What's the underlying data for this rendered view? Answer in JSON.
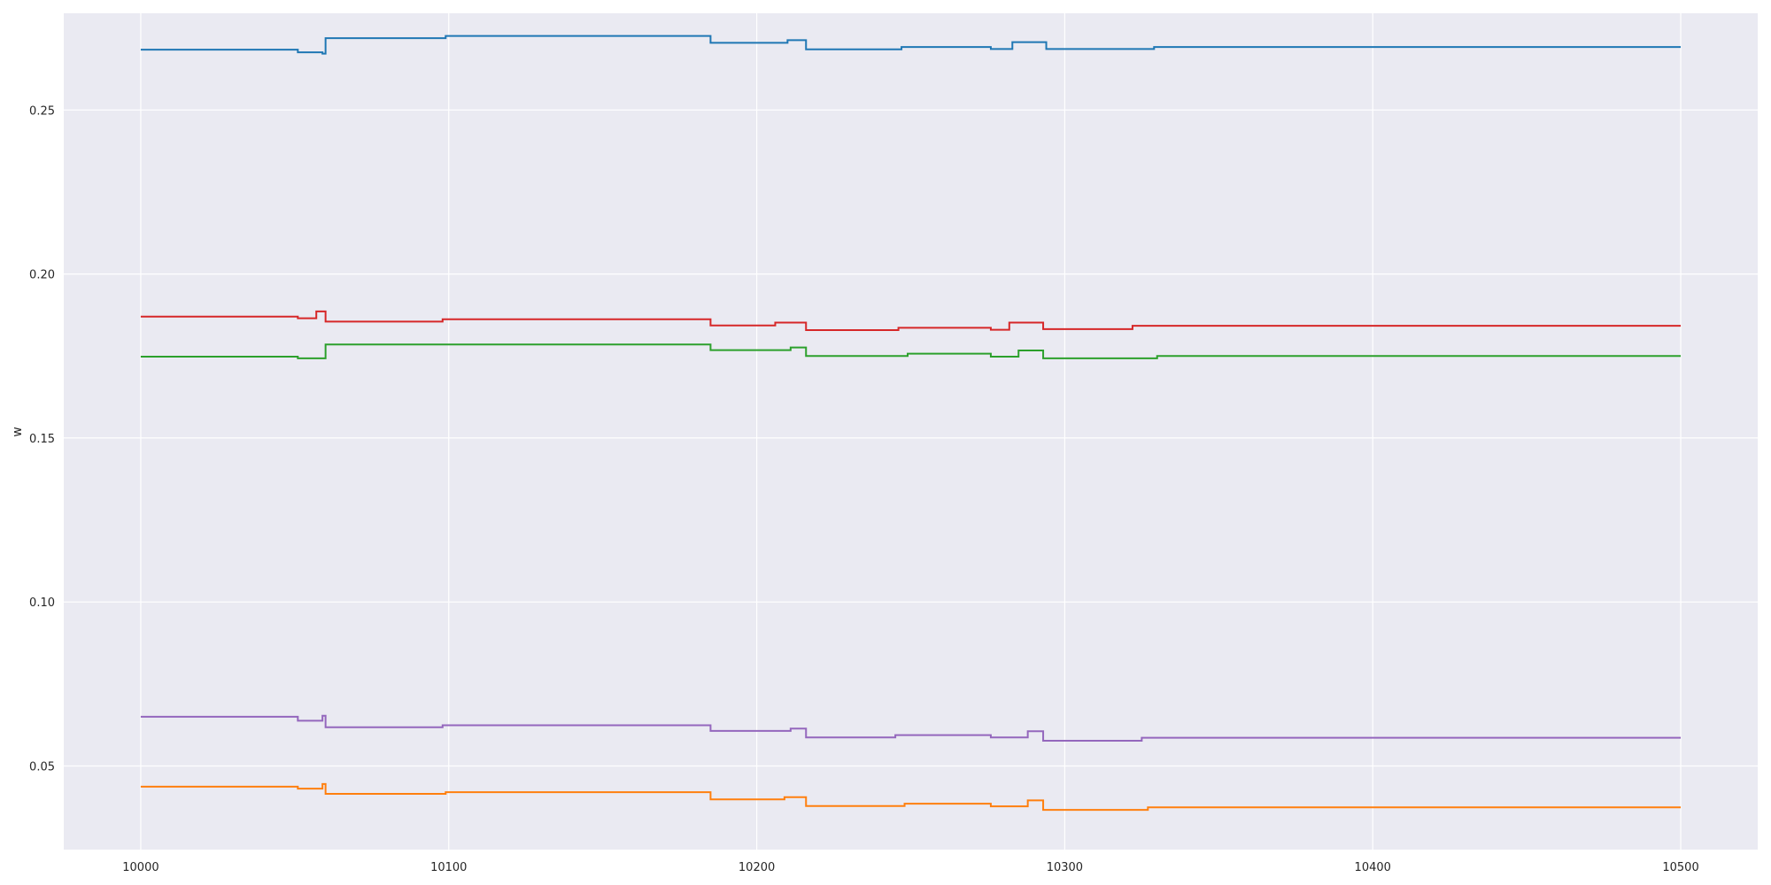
{
  "chart_data": {
    "type": "line",
    "step": "post",
    "title": "",
    "xlabel": "",
    "ylabel": "w",
    "xlim": [
      9975,
      10525
    ],
    "ylim": [
      0.0245,
      0.2795
    ],
    "x_ticks": [
      10000,
      10100,
      10200,
      10300,
      10400,
      10500
    ],
    "y_ticks": [
      0.05,
      0.1,
      0.15,
      0.2,
      0.25
    ],
    "y_tick_labels": [
      "0.05",
      "0.10",
      "0.15",
      "0.20",
      "0.25"
    ],
    "grid": true,
    "legend": "none",
    "style": {
      "background": "#eaeaf2",
      "grid_color": "#ffffff"
    },
    "series": [
      {
        "color": "#1f77b4",
        "points": [
          [
            10000,
            0.2684
          ],
          [
            10051,
            0.2676
          ],
          [
            10059,
            0.2672
          ],
          [
            10060,
            0.2719
          ],
          [
            10099,
            0.2726
          ],
          [
            10185,
            0.2705
          ],
          [
            10210,
            0.2713
          ],
          [
            10216,
            0.2685
          ],
          [
            10247,
            0.2692
          ],
          [
            10276,
            0.2686
          ],
          [
            10283,
            0.2707
          ],
          [
            10294,
            0.2686
          ],
          [
            10329,
            0.2692
          ],
          [
            10500,
            0.2692
          ]
        ]
      },
      {
        "color": "#d62728",
        "points": [
          [
            10000,
            0.187
          ],
          [
            10051,
            0.1865
          ],
          [
            10057,
            0.1886
          ],
          [
            10060,
            0.1855
          ],
          [
            10098,
            0.1862
          ],
          [
            10185,
            0.1843
          ],
          [
            10206,
            0.1852
          ],
          [
            10216,
            0.1829
          ],
          [
            10246,
            0.1836
          ],
          [
            10276,
            0.183
          ],
          [
            10282,
            0.1852
          ],
          [
            10293,
            0.1832
          ],
          [
            10322,
            0.1842
          ],
          [
            10500,
            0.1842
          ]
        ]
      },
      {
        "color": "#2ca02c",
        "points": [
          [
            10000,
            0.1748
          ],
          [
            10051,
            0.1743
          ],
          [
            10060,
            0.1785
          ],
          [
            10185,
            0.1768
          ],
          [
            10211,
            0.1776
          ],
          [
            10216,
            0.175
          ],
          [
            10249,
            0.1757
          ],
          [
            10276,
            0.1748
          ],
          [
            10285,
            0.1767
          ],
          [
            10293,
            0.1743
          ],
          [
            10330,
            0.175
          ],
          [
            10500,
            0.175
          ]
        ]
      },
      {
        "color": "#9467bd",
        "points": [
          [
            10000,
            0.065
          ],
          [
            10051,
            0.0638
          ],
          [
            10059,
            0.0653
          ],
          [
            10060,
            0.0618
          ],
          [
            10098,
            0.0624
          ],
          [
            10185,
            0.0607
          ],
          [
            10211,
            0.0614
          ],
          [
            10216,
            0.0587
          ],
          [
            10245,
            0.0594
          ],
          [
            10276,
            0.0587
          ],
          [
            10288,
            0.0606
          ],
          [
            10293,
            0.0577
          ],
          [
            10325,
            0.0586
          ],
          [
            10500,
            0.0586
          ]
        ]
      },
      {
        "color": "#ff7f0e",
        "points": [
          [
            10000,
            0.0437
          ],
          [
            10051,
            0.0431
          ],
          [
            10059,
            0.0445
          ],
          [
            10060,
            0.0415
          ],
          [
            10099,
            0.042
          ],
          [
            10185,
            0.0398
          ],
          [
            10209,
            0.0405
          ],
          [
            10216,
            0.0378
          ],
          [
            10248,
            0.0385
          ],
          [
            10276,
            0.0377
          ],
          [
            10288,
            0.0395
          ],
          [
            10293,
            0.0366
          ],
          [
            10327,
            0.0374
          ],
          [
            10500,
            0.0374
          ]
        ]
      }
    ]
  }
}
